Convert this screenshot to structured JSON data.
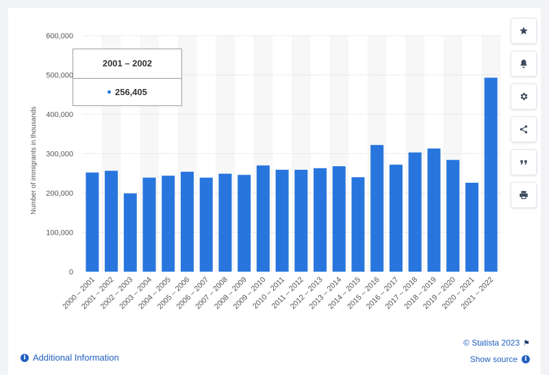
{
  "chart_data": {
    "type": "bar",
    "categories": [
      "2000 – 2001",
      "2001 – 2002",
      "2002 – 2003",
      "2003 – 2004",
      "2004 – 2005",
      "2005 – 2006",
      "2006 – 2007",
      "2007 – 2008",
      "2008 – 2009",
      "2009 – 2010",
      "2010 – 2011",
      "2011 – 2012",
      "2012 – 2013",
      "2013 – 2014",
      "2014 – 2015",
      "2015 – 2016",
      "2016 – 2017",
      "2017 – 2018",
      "2018 – 2019",
      "2019 – 2020",
      "2020 – 2021",
      "2021 – 2022"
    ],
    "values": [
      252000,
      256405,
      199000,
      239000,
      244000,
      254000,
      239000,
      249000,
      246000,
      270000,
      259000,
      259000,
      263000,
      268000,
      240000,
      322000,
      272000,
      303000,
      313000,
      284000,
      226000,
      493000
    ],
    "ylabel": "Number of immigrants in thousands",
    "ylim": [
      0,
      600000
    ],
    "yticks": [
      0,
      100000,
      200000,
      300000,
      400000,
      500000,
      600000
    ],
    "ytick_labels": [
      "0",
      "100,000",
      "200,000",
      "300,000",
      "400,000",
      "500,000",
      "600,000"
    ],
    "grid": true,
    "bar_color": "#2876dd",
    "highlight_index": 1
  },
  "tooltip": {
    "title": "2001 – 2002",
    "value": "256,405"
  },
  "toolbar": {
    "items": [
      {
        "name": "star-icon"
      },
      {
        "name": "bell-icon"
      },
      {
        "name": "gear-icon"
      },
      {
        "name": "share-icon"
      },
      {
        "name": "quote-icon"
      },
      {
        "name": "print-icon"
      }
    ]
  },
  "footer": {
    "additional_info": "Additional Information",
    "credit": "© Statista 2023",
    "show_source": "Show source"
  }
}
